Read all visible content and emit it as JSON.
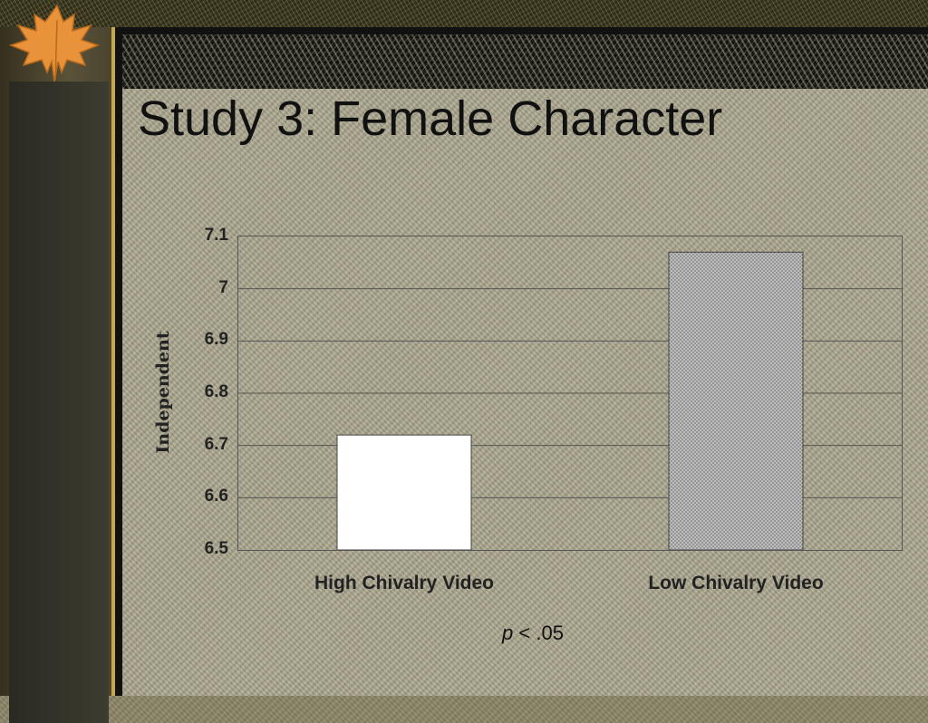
{
  "slide": {
    "title": "Study 3: Female Character",
    "note_p": "p",
    "note_rest": " < .05",
    "leaf_icon": "maple-leaf-icon"
  },
  "colors": {
    "background": "#aaa58c",
    "header_band": "#1c1c16",
    "accent_gold": "#c9a84a",
    "leaf": "#e8923a",
    "bar_high": "#ffffff",
    "bar_low": "#9a9a9a"
  },
  "chart_data": {
    "type": "bar",
    "categories": [
      "High Chivalry Video",
      "Low Chivalry Video"
    ],
    "values": [
      6.72,
      7.07
    ],
    "title": "",
    "xlabel": "",
    "ylabel": "Independent",
    "ylim": [
      6.5,
      7.1
    ],
    "yticks": [
      "6.5",
      "6.6",
      "6.7",
      "6.8",
      "6.9",
      "7",
      "7.1"
    ],
    "grid": true,
    "legend": "none"
  }
}
